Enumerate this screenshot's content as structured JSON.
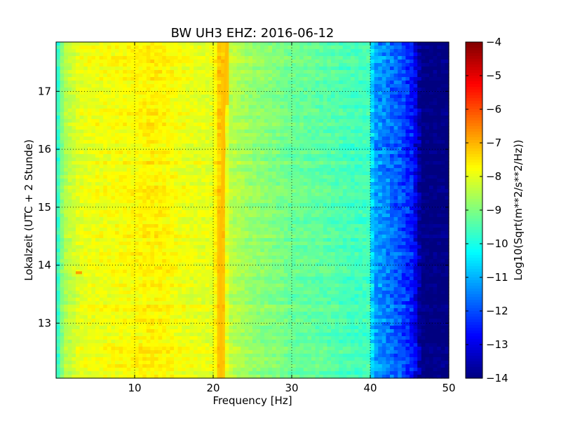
{
  "chart_data": {
    "type": "heatmap",
    "title": "BW UH3 EHZ: 2016-06-12",
    "xlabel": "Frequency [Hz]",
    "ylabel": "Lokalzeit (UTC + 2 Stunde)",
    "xlim": [
      0,
      50
    ],
    "ylim": [
      17.85,
      12.05
    ],
    "y_inverted": true,
    "x_ticks": [
      10,
      20,
      30,
      40,
      50
    ],
    "x_tick_labels": [
      "10",
      "20",
      "30",
      "40",
      "50"
    ],
    "y_ticks": [
      13,
      14,
      15,
      16,
      17
    ],
    "y_tick_labels": [
      "13",
      "14",
      "15",
      "16",
      "17"
    ],
    "grid": true,
    "grid_style": "dotted",
    "colormap": "jet",
    "colorbar": {
      "label": "Log10(Sqrt(m**2/s**2/Hz))",
      "range": [
        -14,
        -4
      ],
      "ticks": [
        -4,
        -5,
        -6,
        -7,
        -8,
        -9,
        -10,
        -11,
        -12,
        -13,
        -14
      ],
      "tick_labels": [
        "−4",
        "−5",
        "−6",
        "−7",
        "−8",
        "−9",
        "−10",
        "−11",
        "−12",
        "−13",
        "−14"
      ]
    },
    "spectral_profile": {
      "frequency_hz": [
        0,
        0.5,
        1,
        2,
        3,
        5,
        8,
        10,
        12,
        14,
        16,
        18,
        20,
        20.8,
        21.2,
        22,
        23,
        25,
        28,
        30,
        33,
        35,
        38,
        39.8,
        40.5,
        42,
        44,
        45.5,
        46.5,
        48,
        50
      ],
      "log10_amplitude": [
        -10.2,
        -9.2,
        -8.6,
        -8.3,
        -8.0,
        -7.9,
        -7.8,
        -7.75,
        -7.6,
        -7.7,
        -7.9,
        -8.0,
        -8.0,
        -7.2,
        -7.2,
        -8.4,
        -8.5,
        -8.8,
        -9.0,
        -9.2,
        -9.3,
        -9.4,
        -9.6,
        -9.6,
        -11.2,
        -11.5,
        -12.0,
        -12.6,
        -14.0,
        -14.0,
        -14.0
      ]
    },
    "tonal_line": {
      "time_h": [
        12.05,
        13.0,
        13.7,
        14.0,
        14.5,
        14.9,
        15.3,
        16.0,
        16.5,
        17.0,
        17.5,
        17.85
      ],
      "frequency_hz": [
        21.0,
        21.0,
        20.9,
        21.0,
        20.9,
        21.1,
        21.2,
        21.4,
        21.3,
        21.5,
        21.6,
        21.8
      ]
    },
    "features": {
      "transient_time_h": 13.87,
      "transient_frequency_hz": [
        2.5,
        3.3
      ]
    }
  }
}
